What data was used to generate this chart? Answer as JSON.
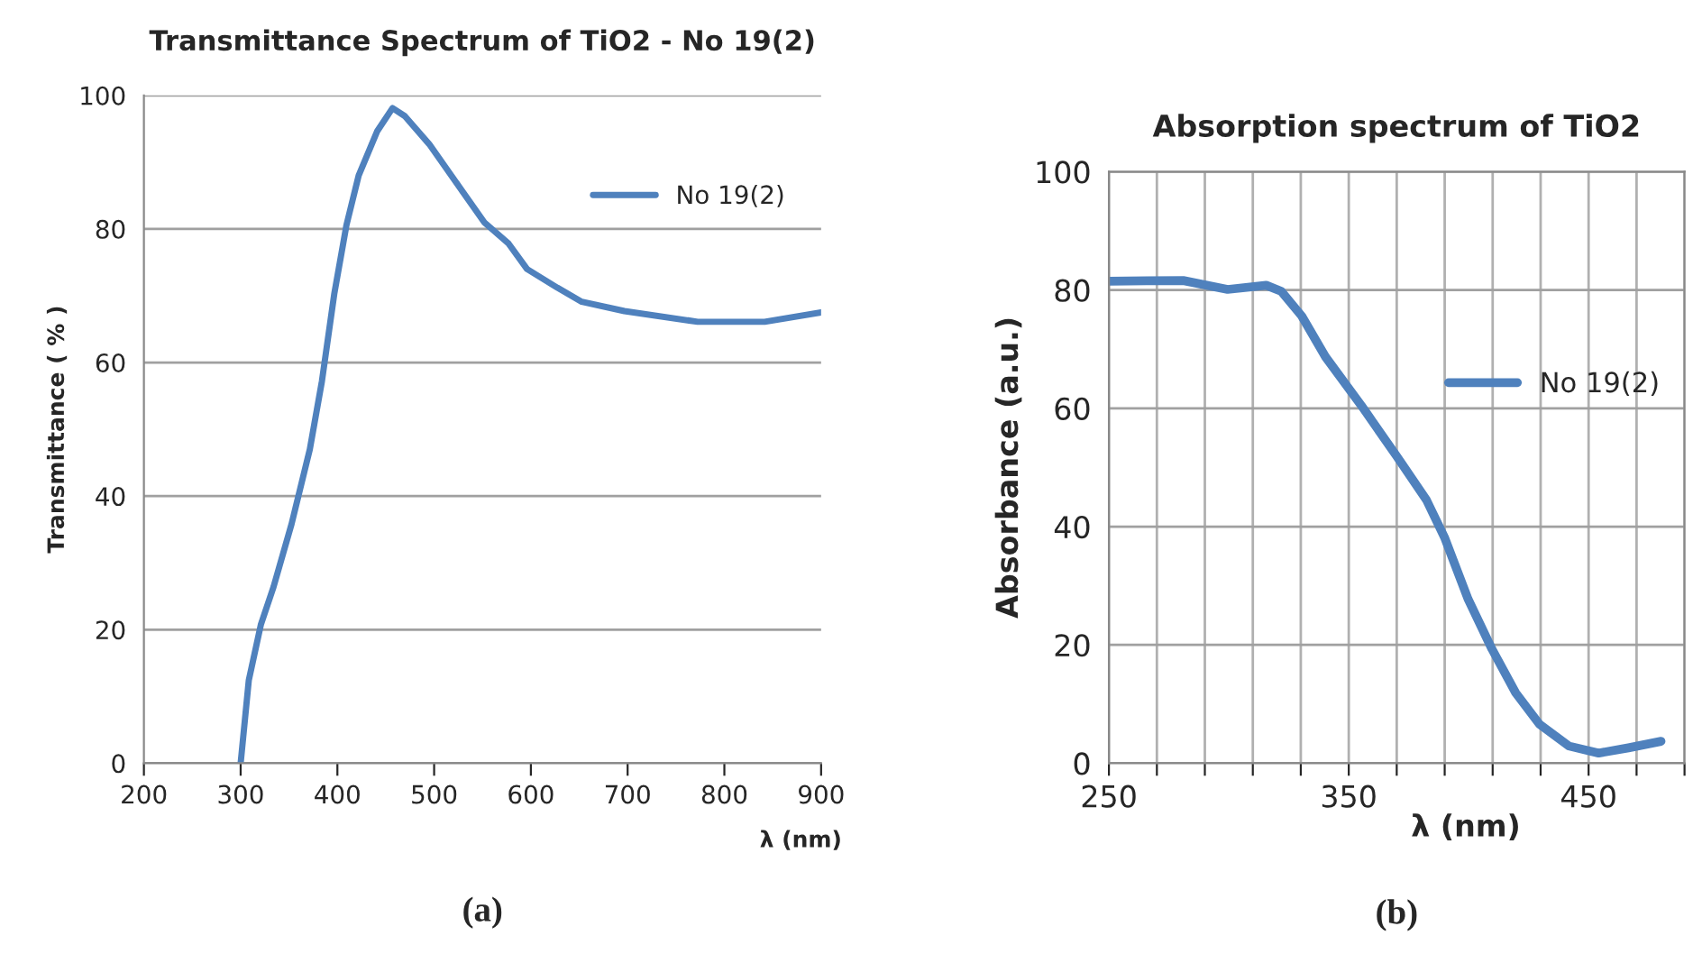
{
  "chart_data": [
    {
      "type": "line",
      "title": "Transmittance Spectrum of TiO2 - No 19(2)",
      "xlabel": "λ (nm)",
      "ylabel": "Transmittance ( % )",
      "annotations": [
        "(a)"
      ],
      "series": [
        {
          "name": "No 19(2)",
          "color": "#4f81bd",
          "x": [
            300,
            308.4,
            321,
            334,
            352.6,
            371.5,
            384,
            396.8,
            409.4,
            422,
            441,
            457,
            469.7,
            494.9,
            526.5,
            551.8,
            577,
            596,
            627.4,
            652.6,
            696.7,
            772.4,
            841.7,
            900
          ],
          "values": [
            0,
            12.4,
            20.8,
            26.4,
            35.8,
            47,
            57.2,
            70.3,
            80.6,
            88,
            94.6,
            98.1,
            96.9,
            92.7,
            86.2,
            81,
            77.8,
            74,
            71.2,
            69.1,
            67.7,
            66.1,
            66.1,
            67.5
          ]
        }
      ],
      "xlim": [
        200,
        900
      ],
      "xticks": [
        200,
        300,
        400,
        500,
        600,
        700,
        800,
        900
      ],
      "ylim": [
        0,
        100
      ],
      "yticks": [
        0,
        20,
        40,
        60,
        80,
        100
      ],
      "grid": "y",
      "legend": "top right",
      "line_style": "solid"
    },
    {
      "type": "line",
      "title": "Absorption spectrum of TiO2",
      "xlabel": "λ (nm)",
      "ylabel": "Absorbance (a.u.)",
      "annotations": [
        "(b)"
      ],
      "series": [
        {
          "name": "No 19(2)",
          "color": "#4f81bd",
          "x": [
            250,
            281,
            299.5,
            315.6,
            321.8,
            330.4,
            340.3,
            355.2,
            370,
            382.4,
            389.9,
            399.8,
            409.7,
            419.6,
            429.5,
            441.8,
            454.2,
            466.6,
            480.2
          ],
          "values": [
            81.5,
            81.6,
            80.1,
            80.8,
            79.8,
            75.6,
            68.7,
            60.5,
            51.9,
            44.5,
            38.2,
            27.7,
            19.3,
            11.9,
            6.6,
            2.9,
            1.7,
            2.6,
            3.7
          ]
        }
      ],
      "xlim": [
        250,
        490
      ],
      "xticks": [
        250,
        {
          "value": 270,
          "label": null
        },
        {
          "value": 290,
          "label": null
        },
        {
          "value": 310,
          "label": null
        },
        {
          "value": 330,
          "label": null
        },
        350,
        {
          "value": 370,
          "label": null
        },
        {
          "value": 390,
          "label": null
        },
        {
          "value": 410,
          "label": null
        },
        {
          "value": 430,
          "label": null
        },
        450,
        {
          "value": 470,
          "label": null
        },
        {
          "value": 490,
          "label": null
        }
      ],
      "ylim": [
        0,
        100
      ],
      "yticks": [
        0,
        20,
        40,
        60,
        80,
        100
      ],
      "grid": true,
      "legend": "right",
      "line_style": "solid"
    }
  ]
}
